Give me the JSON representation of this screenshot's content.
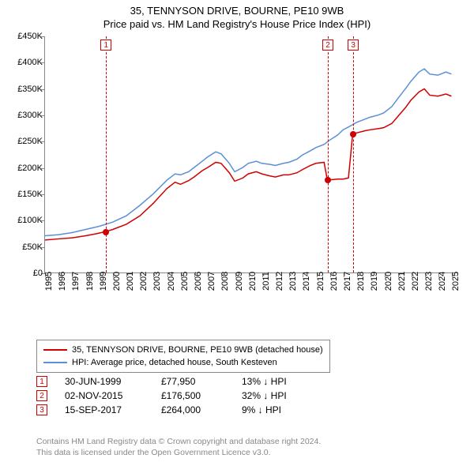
{
  "titles": {
    "line1": "35, TENNYSON DRIVE, BOURNE, PE10 9WB",
    "line2": "Price paid vs. HM Land Registry's House Price Index (HPI)"
  },
  "chart": {
    "type": "line",
    "x_years": [
      1995,
      1996,
      1997,
      1998,
      1999,
      2000,
      2001,
      2002,
      2003,
      2004,
      2005,
      2006,
      2007,
      2008,
      2009,
      2010,
      2011,
      2012,
      2013,
      2014,
      2015,
      2016,
      2017,
      2018,
      2019,
      2020,
      2021,
      2022,
      2023,
      2024,
      2025
    ],
    "x_range": [
      1995,
      2025.5
    ],
    "yticks": [
      0,
      50000,
      100000,
      150000,
      200000,
      250000,
      300000,
      350000,
      400000,
      450000
    ],
    "ytick_labels": [
      "£0",
      "£50K",
      "£100K",
      "£150K",
      "£200K",
      "£250K",
      "£300K",
      "£350K",
      "£400K",
      "£450K"
    ],
    "ylim": [
      0,
      450000
    ],
    "background_color": "#ffffff",
    "axis_color": "#888888",
    "series": [
      {
        "id": "price_paid",
        "color": "#d00000",
        "width": 1.5,
        "points": [
          [
            1995,
            62000
          ],
          [
            1996,
            64000
          ],
          [
            1997,
            66000
          ],
          [
            1998,
            70000
          ],
          [
            1998.8,
            74000
          ],
          [
            1999.5,
            77950
          ],
          [
            2000,
            82000
          ],
          [
            2001,
            92000
          ],
          [
            2002,
            108000
          ],
          [
            2003,
            132000
          ],
          [
            2004,
            160000
          ],
          [
            2004.6,
            172000
          ],
          [
            2005,
            168000
          ],
          [
            2005.6,
            175000
          ],
          [
            2006,
            182000
          ],
          [
            2006.6,
            194000
          ],
          [
            2007,
            200000
          ],
          [
            2007.6,
            210000
          ],
          [
            2008,
            208000
          ],
          [
            2008.6,
            190000
          ],
          [
            2009,
            174000
          ],
          [
            2009.6,
            180000
          ],
          [
            2010,
            188000
          ],
          [
            2010.6,
            192000
          ],
          [
            2011,
            188000
          ],
          [
            2011.6,
            184000
          ],
          [
            2012,
            182000
          ],
          [
            2012.6,
            186000
          ],
          [
            2013,
            186000
          ],
          [
            2013.6,
            190000
          ],
          [
            2014,
            196000
          ],
          [
            2014.6,
            204000
          ],
          [
            2015,
            208000
          ],
          [
            2015.6,
            210000
          ],
          [
            2015.84,
            176500
          ],
          [
            2016,
            176500
          ],
          [
            2016.6,
            178000
          ],
          [
            2017,
            178000
          ],
          [
            2017.4,
            180000
          ],
          [
            2017.71,
            264000
          ],
          [
            2018,
            266000
          ],
          [
            2018.6,
            270000
          ],
          [
            2019,
            272000
          ],
          [
            2019.6,
            274000
          ],
          [
            2020,
            276000
          ],
          [
            2020.6,
            284000
          ],
          [
            2021,
            296000
          ],
          [
            2021.6,
            314000
          ],
          [
            2022,
            328000
          ],
          [
            2022.6,
            344000
          ],
          [
            2023,
            350000
          ],
          [
            2023.4,
            338000
          ],
          [
            2024,
            336000
          ],
          [
            2024.6,
            340000
          ],
          [
            2025,
            336000
          ]
        ]
      },
      {
        "id": "hpi",
        "color": "#5b8fd6",
        "width": 1.5,
        "points": [
          [
            1995,
            70000
          ],
          [
            1996,
            72000
          ],
          [
            1997,
            76000
          ],
          [
            1998,
            82000
          ],
          [
            1999,
            88000
          ],
          [
            2000,
            96000
          ],
          [
            2001,
            108000
          ],
          [
            2002,
            128000
          ],
          [
            2003,
            150000
          ],
          [
            2004,
            176000
          ],
          [
            2004.6,
            188000
          ],
          [
            2005,
            186000
          ],
          [
            2005.6,
            192000
          ],
          [
            2006,
            200000
          ],
          [
            2006.6,
            212000
          ],
          [
            2007,
            220000
          ],
          [
            2007.6,
            230000
          ],
          [
            2008,
            226000
          ],
          [
            2008.6,
            208000
          ],
          [
            2009,
            192000
          ],
          [
            2009.6,
            200000
          ],
          [
            2010,
            208000
          ],
          [
            2010.6,
            212000
          ],
          [
            2011,
            208000
          ],
          [
            2011.6,
            206000
          ],
          [
            2012,
            204000
          ],
          [
            2012.6,
            208000
          ],
          [
            2013,
            210000
          ],
          [
            2013.6,
            216000
          ],
          [
            2014,
            224000
          ],
          [
            2014.6,
            232000
          ],
          [
            2015,
            238000
          ],
          [
            2015.6,
            244000
          ],
          [
            2016,
            252000
          ],
          [
            2016.6,
            262000
          ],
          [
            2017,
            272000
          ],
          [
            2017.6,
            280000
          ],
          [
            2018,
            286000
          ],
          [
            2018.6,
            292000
          ],
          [
            2019,
            296000
          ],
          [
            2019.6,
            300000
          ],
          [
            2020,
            304000
          ],
          [
            2020.6,
            316000
          ],
          [
            2021,
            330000
          ],
          [
            2021.6,
            350000
          ],
          [
            2022,
            364000
          ],
          [
            2022.6,
            382000
          ],
          [
            2023,
            388000
          ],
          [
            2023.4,
            378000
          ],
          [
            2024,
            376000
          ],
          [
            2024.6,
            382000
          ],
          [
            2025,
            378000
          ]
        ]
      }
    ],
    "event_lines": [
      {
        "id": 1,
        "x": 1999.5,
        "color": "#d00000"
      },
      {
        "id": 2,
        "x": 2015.84,
        "color": "#d00000"
      },
      {
        "id": 3,
        "x": 2017.71,
        "color": "#d00000"
      }
    ],
    "markers": [
      {
        "x": 1999.5,
        "y": 77950
      },
      {
        "x": 2015.84,
        "y": 176500
      },
      {
        "x": 2017.71,
        "y": 264000
      }
    ]
  },
  "legend": {
    "items": [
      {
        "color": "#d00000",
        "label": "35, TENNYSON DRIVE, BOURNE, PE10 9WB (detached house)"
      },
      {
        "color": "#5b8fd6",
        "label": "HPI: Average price, detached house, South Kesteven"
      }
    ]
  },
  "events": [
    {
      "n": "1",
      "color": "#d00000",
      "date": "30-JUN-1999",
      "price": "£77,950",
      "diff": "13% ↓ HPI"
    },
    {
      "n": "2",
      "color": "#d00000",
      "date": "02-NOV-2015",
      "price": "£176,500",
      "diff": "32% ↓ HPI"
    },
    {
      "n": "3",
      "color": "#d00000",
      "date": "15-SEP-2017",
      "price": "£264,000",
      "diff": "9% ↓ HPI"
    }
  ],
  "attribution": {
    "line1": "Contains HM Land Registry data © Crown copyright and database right 2024.",
    "line2": "This data is licensed under the Open Government Licence v3.0."
  }
}
